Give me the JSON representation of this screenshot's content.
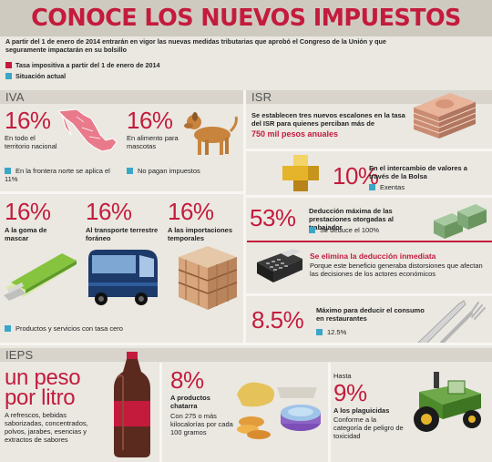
{
  "header": {
    "title": "CONOCE LOS NUEVOS IMPUESTOS",
    "intro": "A partir del 1 de enero de 2014 entrarán en vigor las nuevas medidas tributarias que aprobó el Congreso de la Unión y que seguramente impactarán en su bolsillo",
    "legend": [
      {
        "label": "Tasa impositiva a partir del 1 de enero de 2014",
        "color": "#c41b3d"
      },
      {
        "label": "Situación actual",
        "color": "#3aa6c8"
      }
    ]
  },
  "iva": {
    "title": "IVA",
    "items": [
      {
        "pct": "16%",
        "label": "En todo el territorio nacional",
        "note": "En la frontera norte se aplica el 11%"
      },
      {
        "pct": "16%",
        "label": "En alimento para mascotas",
        "note": "No pagan impuestos"
      },
      {
        "pct": "16%",
        "label": "A la goma de mascar"
      },
      {
        "pct": "16%",
        "label": "Al transporte terrestre foráneo"
      },
      {
        "pct": "16%",
        "label": "A las importaciones temporales"
      }
    ],
    "footer_note": "Productos y servicios con tasa cero"
  },
  "isr": {
    "title": "ISR",
    "intro_text": "Se establecen tres nuevos escalones en la tasa del ISR para quienes perciban más de",
    "intro_highlight": "750 mil pesos anuales",
    "items": [
      {
        "pct": "10%",
        "label": "En el intercambio de valores a través de la Bolsa",
        "note": "Exentas"
      },
      {
        "pct": "53%",
        "label": "Deducción máxima de las prestaciones otorgadas al trabajador",
        "note": "Se deduce el 100%"
      },
      {
        "pct": "8.5%",
        "label": "Máximo para deducir el consumo en restaurantes",
        "note": "12.5%"
      }
    ],
    "elimina_title": "Se elimina la deducción inmediata",
    "elimina_text": "Porque este beneficio generaba distorsiones que afectan las decisiones de los actores económicos"
  },
  "ieps": {
    "title": "IEPS",
    "big_text_line1": "un peso",
    "big_text_line2": "por litro",
    "refrescos": "A refrescos, bebidas saborizadas, concentrados, polvos, jarabes, esencias y extractos de sabores",
    "chatarra_pct": "8%",
    "chatarra_label": "A productos chatarra",
    "chatarra_note": "Con 275 o más kilocalorías por cada 100 gramos",
    "plaguicidas_hasta": "Hasta",
    "plaguicidas_pct": "9%",
    "plaguicidas_label": "A los plaguicidas",
    "plaguicidas_note": "Conforme a la categoría de peligro de toxicidad"
  }
}
